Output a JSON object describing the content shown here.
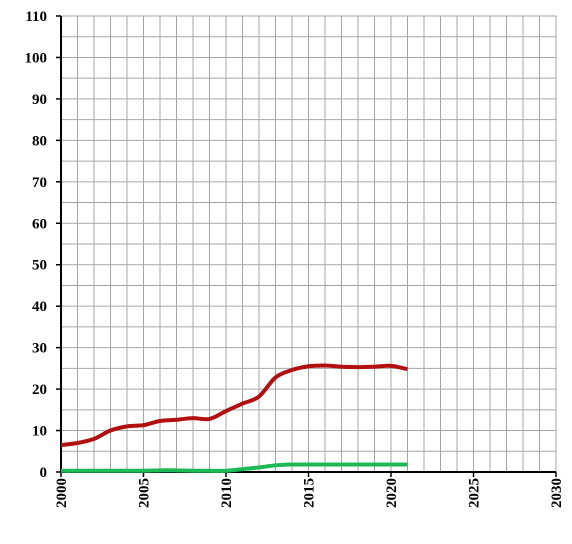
{
  "chart_data": {
    "type": "line",
    "title": "",
    "xlabel": "",
    "ylabel": "",
    "xlim": [
      2000,
      2030
    ],
    "ylim": [
      0,
      110
    ],
    "x_minor_step": 1,
    "y_minor_step": 5,
    "grid": true,
    "x_tick_labels": [
      "2000",
      "2005",
      "2010",
      "2015",
      "2020",
      "2025",
      "2030"
    ],
    "y_tick_labels": [
      "0",
      "10",
      "20",
      "30",
      "40",
      "50",
      "60",
      "70",
      "80",
      "90",
      "100",
      "110"
    ],
    "series": [
      {
        "color": "#b01010",
        "x": [
          2000,
          2001,
          2002,
          2003,
          2004,
          2005,
          2006,
          2007,
          2008,
          2009,
          2010,
          2011,
          2012,
          2013,
          2014,
          2015,
          2016,
          2017,
          2018,
          2019,
          2020,
          2021
        ],
        "values": [
          6.5,
          7.0,
          8.0,
          10.0,
          11.0,
          11.3,
          12.3,
          12.6,
          13.0,
          12.8,
          14.7,
          16.5,
          18.2,
          22.8,
          24.6,
          25.5,
          25.7,
          25.4,
          25.3,
          25.4,
          25.6,
          24.8
        ]
      },
      {
        "color": "#1db954",
        "x": [
          2000,
          2001,
          2002,
          2003,
          2004,
          2005,
          2006,
          2007,
          2008,
          2009,
          2010,
          2011,
          2012,
          2013,
          2014,
          2015,
          2016,
          2017,
          2018,
          2019,
          2020,
          2021
        ],
        "values": [
          0.3,
          0.3,
          0.3,
          0.3,
          0.3,
          0.3,
          0.4,
          0.4,
          0.3,
          0.3,
          0.3,
          0.7,
          1.1,
          1.6,
          1.8,
          1.8,
          1.8,
          1.8,
          1.8,
          1.8,
          1.8,
          1.8
        ]
      }
    ]
  }
}
